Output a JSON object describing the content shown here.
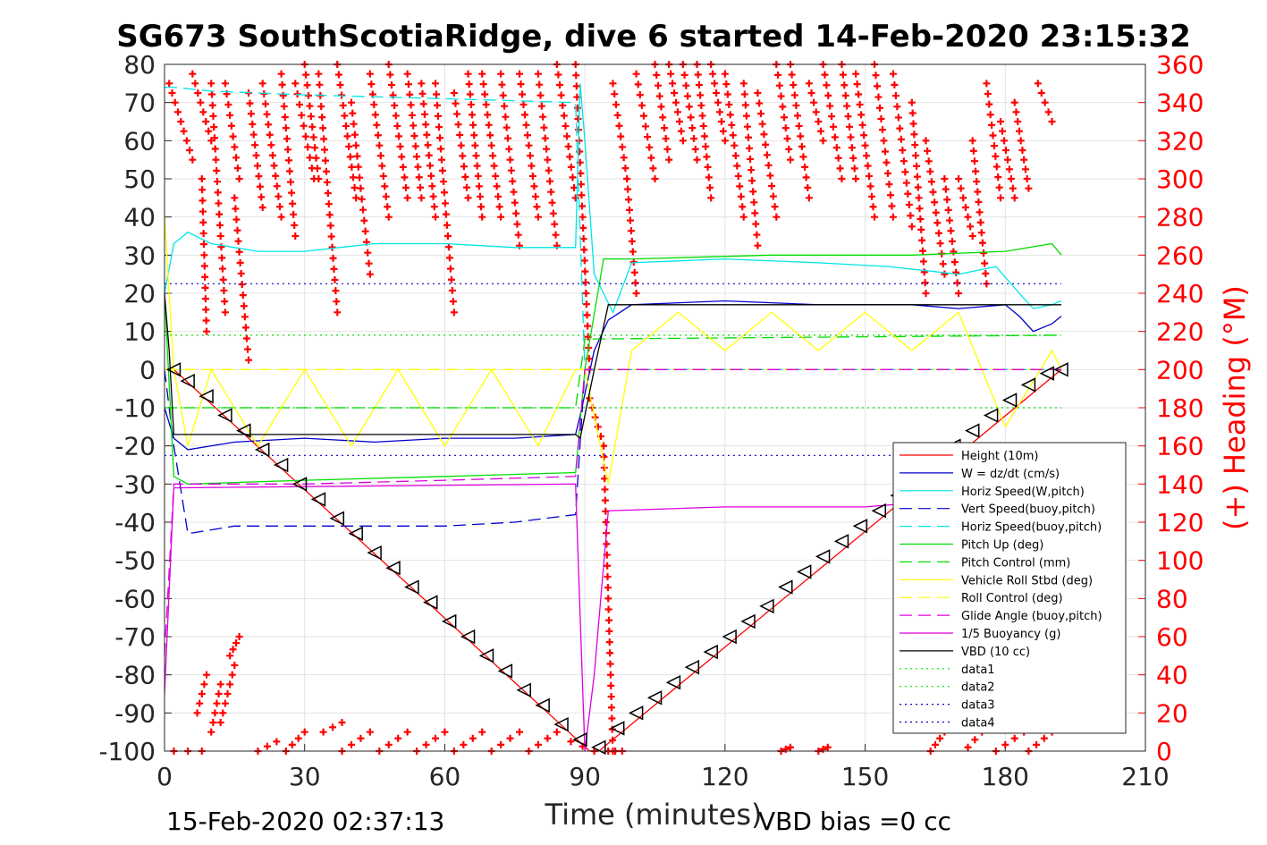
{
  "chart_data": {
    "type": "line",
    "title": "SG673 SouthScotiaRidge, dive 6 started 14-Feb-2020 23:15:32",
    "xlabel": "Time (minutes)",
    "ylabel": "",
    "y2label": "(+) Heading (°M)",
    "xlim": [
      0,
      210
    ],
    "ylim": [
      -100,
      80
    ],
    "y2lim": [
      0,
      360
    ],
    "xticks": [
      "0",
      "30",
      "60",
      "90",
      "120",
      "150",
      "180",
      "210"
    ],
    "yticks": [
      "-100",
      "-90",
      "-80",
      "-70",
      "-60",
      "-50",
      "-40",
      "-30",
      "-20",
      "-10",
      "0",
      "10",
      "20",
      "30",
      "40",
      "50",
      "60",
      "70",
      "80"
    ],
    "y2ticks": [
      "0",
      "20",
      "40",
      "60",
      "80",
      "100",
      "120",
      "140",
      "160",
      "180",
      "200",
      "220",
      "240",
      "260",
      "280",
      "300",
      "320",
      "340",
      "360"
    ],
    "grid": true,
    "legend_position": "bottom-right",
    "footer_left": "15-Feb-2020 02:37:13",
    "footer_right": "VBD bias =0 cc",
    "series": [
      {
        "name": "Height (10m)",
        "color": "#ff0000",
        "style": "solid",
        "x": [
          0,
          2,
          91,
          93,
          192
        ],
        "y": [
          0,
          0,
          -100,
          -100,
          0
        ]
      },
      {
        "name": "W = dz/dt (cm/s)",
        "color": "#0000cc",
        "style": "solid",
        "x": [
          0,
          2,
          5,
          15,
          30,
          45,
          60,
          75,
          88,
          89,
          92,
          95,
          100,
          120,
          140,
          160,
          170,
          180,
          183,
          186,
          190,
          192
        ],
        "y": [
          -10,
          -18,
          -21,
          -19,
          -18,
          -19,
          -18,
          -18,
          -17,
          -12,
          5,
          13,
          17,
          18,
          17,
          17,
          16,
          17,
          14,
          10,
          12,
          14
        ]
      },
      {
        "name": "Horiz Speed(W,pitch)",
        "color": "#00e5e5",
        "style": "solid",
        "x": [
          0,
          2,
          5,
          10,
          20,
          30,
          45,
          60,
          75,
          88,
          89,
          90,
          92,
          94,
          96,
          100,
          120,
          140,
          155,
          170,
          178,
          183,
          186,
          190,
          192
        ],
        "y": [
          20,
          33,
          36,
          33,
          31,
          31,
          33,
          33,
          32,
          32,
          75,
          60,
          25,
          20,
          15,
          28,
          29,
          28,
          27,
          25,
          27,
          20,
          16,
          17,
          18
        ]
      },
      {
        "name": "Vert Speed(buoy,pitch)",
        "color": "#0000cc",
        "style": "dashed",
        "x": [
          0,
          2,
          5,
          15,
          30,
          45,
          60,
          75,
          88,
          90,
          192
        ],
        "y": [
          0,
          -20,
          -43,
          -41,
          -41,
          -41,
          -41,
          -40,
          -38,
          0,
          0
        ]
      },
      {
        "name": "Horiz Speed(buoy,pitch)",
        "color": "#00e5e5",
        "style": "dashed",
        "x": [
          0,
          2,
          10,
          30,
          60,
          88,
          90,
          192
        ],
        "y": [
          74,
          74,
          73,
          72,
          71,
          70,
          0,
          0
        ]
      },
      {
        "name": "Pitch Up (deg)",
        "color": "#00dd00",
        "style": "solid",
        "x": [
          0,
          2,
          5,
          30,
          60,
          88,
          90,
          94,
          100,
          130,
          160,
          180,
          190,
          192
        ],
        "y": [
          20,
          -28,
          -30,
          -29,
          -28,
          -27,
          0,
          29,
          29,
          30,
          30,
          31,
          33,
          30
        ]
      },
      {
        "name": "Pitch Control (mm)",
        "color": "#00dd00",
        "style": "dashed",
        "x": [
          0,
          2,
          88,
          90,
          192
        ],
        "y": [
          -10,
          -10,
          -10,
          8,
          9
        ]
      },
      {
        "name": "Vehicle Roll Stbd (deg)",
        "color": "#ffff00",
        "style": "solid",
        "x": [
          0,
          2,
          5,
          10,
          20,
          30,
          40,
          50,
          60,
          70,
          80,
          88,
          90,
          95,
          100,
          110,
          120,
          130,
          140,
          150,
          160,
          170,
          180,
          190,
          192
        ],
        "y": [
          40,
          0,
          -20,
          0,
          -20,
          0,
          -20,
          0,
          -20,
          0,
          -20,
          0,
          0,
          -30,
          5,
          15,
          5,
          15,
          5,
          15,
          5,
          15,
          -15,
          5,
          0
        ]
      },
      {
        "name": "Roll Control (deg)",
        "color": "#ffff00",
        "style": "dashed",
        "x": [
          0,
          192
        ],
        "y": [
          0,
          0
        ]
      },
      {
        "name": "Glide Angle (buoy,pitch)",
        "color": "#dd00dd",
        "style": "dashed",
        "x": [
          0,
          2,
          30,
          60,
          88,
          90,
          192
        ],
        "y": [
          -75,
          -30,
          -30,
          -29,
          -28,
          0,
          0
        ]
      },
      {
        "name": "1/5 Buoyancy (g)",
        "color": "#dd00dd",
        "style": "solid",
        "x": [
          0,
          2,
          88,
          90,
          92,
          95,
          120,
          150,
          160,
          190,
          192
        ],
        "y": [
          -85,
          -31,
          -30,
          -100,
          -80,
          -37,
          -36,
          -36,
          -35,
          -35,
          -35
        ]
      },
      {
        "name": "VBD (10 cc)",
        "color": "#000000",
        "style": "solid",
        "x": [
          0,
          1,
          2,
          88,
          89,
          92,
          95,
          192
        ],
        "y": [
          20,
          5,
          -17,
          -17,
          -18,
          0,
          17,
          17
        ]
      },
      {
        "name": "data1",
        "color": "#00dd00",
        "style": "dotted",
        "x": [
          0,
          192
        ],
        "y": [
          -10,
          -10
        ]
      },
      {
        "name": "data2",
        "color": "#00dd00",
        "style": "dotted",
        "x": [
          0,
          192
        ],
        "y": [
          9,
          9
        ]
      },
      {
        "name": "data3",
        "color": "#0000cc",
        "style": "dotted",
        "x": [
          0,
          192
        ],
        "y": [
          -22.5,
          -22.5
        ]
      },
      {
        "name": "data4",
        "color": "#0000cc",
        "style": "dotted",
        "x": [
          0,
          192
        ],
        "y": [
          22.5,
          22.5
        ]
      }
    ],
    "depth_markers": {
      "color": "#000000",
      "x": [
        2,
        5,
        9,
        13,
        17,
        21,
        25,
        29,
        33,
        37,
        41,
        45,
        49,
        53,
        57,
        61,
        65,
        69,
        73,
        77,
        81,
        85,
        89,
        93,
        97,
        101,
        105,
        109,
        113,
        117,
        121,
        125,
        129,
        133,
        137,
        141,
        145,
        149,
        153,
        157,
        161,
        165,
        169,
        173,
        177,
        181,
        185,
        189,
        192
      ],
      "y": [
        0,
        -3,
        -7,
        -12,
        -16,
        -21,
        -25,
        -30,
        -34,
        -39,
        -43,
        -48,
        -52,
        -57,
        -61,
        -66,
        -70,
        -75,
        -79,
        -84,
        -88,
        -93,
        -97,
        -99,
        -94,
        -90,
        -86,
        -82,
        -78,
        -74,
        -70,
        -66,
        -62,
        -57,
        -53,
        -49,
        -45,
        -41,
        -37,
        -33,
        -29,
        -25,
        -20,
        -16,
        -12,
        -8,
        -4,
        -1,
        0
      ]
    },
    "heading": {
      "name": "(+) Heading (°M)",
      "color": "#ff0000",
      "marker": "+",
      "sweeps": [
        {
          "x0": 1,
          "h0": 350,
          "x1": 6,
          "h1": 310
        },
        {
          "x0": 6,
          "h0": 355,
          "x1": 10,
          "h1": 320
        },
        {
          "x0": 8,
          "h0": 300,
          "x1": 9,
          "h1": 220
        },
        {
          "x0": 10,
          "h0": 350,
          "x1": 13,
          "h1": 230
        },
        {
          "x0": 13,
          "h0": 350,
          "x1": 16,
          "h1": 300
        },
        {
          "x0": 15,
          "h0": 290,
          "x1": 18,
          "h1": 205
        },
        {
          "x0": 18,
          "h0": 345,
          "x1": 21,
          "h1": 285
        },
        {
          "x0": 21,
          "h0": 350,
          "x1": 25,
          "h1": 280
        },
        {
          "x0": 25,
          "h0": 355,
          "x1": 28,
          "h1": 270
        },
        {
          "x0": 28,
          "h0": 350,
          "x1": 32,
          "h1": 300
        },
        {
          "x0": 30,
          "h0": 360,
          "x1": 33,
          "h1": 300
        },
        {
          "x0": 33,
          "h0": 355,
          "x1": 37,
          "h1": 230
        },
        {
          "x0": 37,
          "h0": 360,
          "x1": 41,
          "h1": 290
        },
        {
          "x0": 40,
          "h0": 340,
          "x1": 44,
          "h1": 250
        },
        {
          "x0": 44,
          "h0": 355,
          "x1": 48,
          "h1": 280
        },
        {
          "x0": 48,
          "h0": 360,
          "x1": 52,
          "h1": 290
        },
        {
          "x0": 52,
          "h0": 355,
          "x1": 55,
          "h1": 290
        },
        {
          "x0": 55,
          "h0": 350,
          "x1": 58,
          "h1": 280
        },
        {
          "x0": 58,
          "h0": 350,
          "x1": 62,
          "h1": 230
        },
        {
          "x0": 62,
          "h0": 345,
          "x1": 65,
          "h1": 290
        },
        {
          "x0": 65,
          "h0": 355,
          "x1": 68,
          "h1": 280
        },
        {
          "x0": 68,
          "h0": 355,
          "x1": 72,
          "h1": 280
        },
        {
          "x0": 72,
          "h0": 355,
          "x1": 76,
          "h1": 265
        },
        {
          "x0": 76,
          "h0": 355,
          "x1": 80,
          "h1": 280
        },
        {
          "x0": 80,
          "h0": 355,
          "x1": 84,
          "h1": 265
        },
        {
          "x0": 84,
          "h0": 360,
          "x1": 88,
          "h1": 290
        },
        {
          "x0": 88,
          "h0": 360,
          "x1": 91,
          "h1": 200
        },
        {
          "x0": 91,
          "h0": 185,
          "x1": 94,
          "h1": 160
        },
        {
          "x0": 94,
          "h0": 160,
          "x1": 96,
          "h1": 0
        },
        {
          "x0": 96,
          "h0": 350,
          "x1": 99,
          "h1": 300
        },
        {
          "x0": 99,
          "h0": 300,
          "x1": 101,
          "h1": 240
        },
        {
          "x0": 101,
          "h0": 355,
          "x1": 105,
          "h1": 300
        },
        {
          "x0": 105,
          "h0": 360,
          "x1": 108,
          "h1": 310
        },
        {
          "x0": 108,
          "h0": 360,
          "x1": 111,
          "h1": 320
        },
        {
          "x0": 111,
          "h0": 360,
          "x1": 114,
          "h1": 310
        },
        {
          "x0": 114,
          "h0": 360,
          "x1": 117,
          "h1": 290
        },
        {
          "x0": 117,
          "h0": 360,
          "x1": 120,
          "h1": 320
        },
        {
          "x0": 120,
          "h0": 355,
          "x1": 124,
          "h1": 280
        },
        {
          "x0": 124,
          "h0": 350,
          "x1": 127,
          "h1": 265
        },
        {
          "x0": 127,
          "h0": 345,
          "x1": 131,
          "h1": 280
        },
        {
          "x0": 131,
          "h0": 360,
          "x1": 134,
          "h1": 310
        },
        {
          "x0": 134,
          "h0": 360,
          "x1": 138,
          "h1": 290
        },
        {
          "x0": 138,
          "h0": 350,
          "x1": 141,
          "h1": 320
        },
        {
          "x0": 141,
          "h0": 360,
          "x1": 145,
          "h1": 300
        },
        {
          "x0": 145,
          "h0": 360,
          "x1": 148,
          "h1": 300
        },
        {
          "x0": 148,
          "h0": 355,
          "x1": 152,
          "h1": 280
        },
        {
          "x0": 152,
          "h0": 360,
          "x1": 156,
          "h1": 280
        },
        {
          "x0": 156,
          "h0": 355,
          "x1": 160,
          "h1": 275
        },
        {
          "x0": 160,
          "h0": 340,
          "x1": 163,
          "h1": 240
        },
        {
          "x0": 163,
          "h0": 320,
          "x1": 167,
          "h1": 250
        },
        {
          "x0": 167,
          "h0": 300,
          "x1": 170,
          "h1": 240
        },
        {
          "x0": 170,
          "h0": 300,
          "x1": 173,
          "h1": 270
        },
        {
          "x0": 173,
          "h0": 320,
          "x1": 176,
          "h1": 245
        },
        {
          "x0": 176,
          "h0": 350,
          "x1": 179,
          "h1": 290
        },
        {
          "x0": 179,
          "h0": 330,
          "x1": 182,
          "h1": 290
        },
        {
          "x0": 182,
          "h0": 340,
          "x1": 185,
          "h1": 295
        },
        {
          "x0": 187,
          "h0": 350,
          "x1": 190,
          "h1": 330
        },
        {
          "x0": 2,
          "h0": 0,
          "x1": 8,
          "h1": 0
        },
        {
          "x0": 7,
          "h0": 20,
          "x1": 9,
          "h1": 40
        },
        {
          "x0": 10,
          "h0": 10,
          "x1": 12,
          "h1": 35
        },
        {
          "x0": 12,
          "h0": 15,
          "x1": 15,
          "h1": 45
        },
        {
          "x0": 14,
          "h0": 50,
          "x1": 16,
          "h1": 60
        },
        {
          "x0": 20,
          "h0": 0,
          "x1": 24,
          "h1": 5
        },
        {
          "x0": 26,
          "h0": 0,
          "x1": 30,
          "h1": 10
        },
        {
          "x0": 34,
          "h0": 10,
          "x1": 38,
          "h1": 15
        },
        {
          "x0": 38,
          "h0": 0,
          "x1": 44,
          "h1": 10
        },
        {
          "x0": 46,
          "h0": 0,
          "x1": 52,
          "h1": 10
        },
        {
          "x0": 54,
          "h0": 0,
          "x1": 60,
          "h1": 10
        },
        {
          "x0": 62,
          "h0": 0,
          "x1": 68,
          "h1": 10
        },
        {
          "x0": 70,
          "h0": 0,
          "x1": 76,
          "h1": 10
        },
        {
          "x0": 78,
          "h0": 0,
          "x1": 84,
          "h1": 10
        },
        {
          "x0": 87,
          "h0": 5,
          "x1": 92,
          "h1": 0
        },
        {
          "x0": 95,
          "h0": 0,
          "x1": 98,
          "h1": 0
        },
        {
          "x0": 132,
          "h0": 0,
          "x1": 134,
          "h1": 2
        },
        {
          "x0": 140,
          "h0": 0,
          "x1": 142,
          "h1": 2
        },
        {
          "x0": 164,
          "h0": 0,
          "x1": 167,
          "h1": 10
        },
        {
          "x0": 172,
          "h0": 2,
          "x1": 175,
          "h1": 10
        },
        {
          "x0": 178,
          "h0": 0,
          "x1": 184,
          "h1": 10
        },
        {
          "x0": 185,
          "h0": 0,
          "x1": 190,
          "h1": 10
        }
      ]
    }
  }
}
